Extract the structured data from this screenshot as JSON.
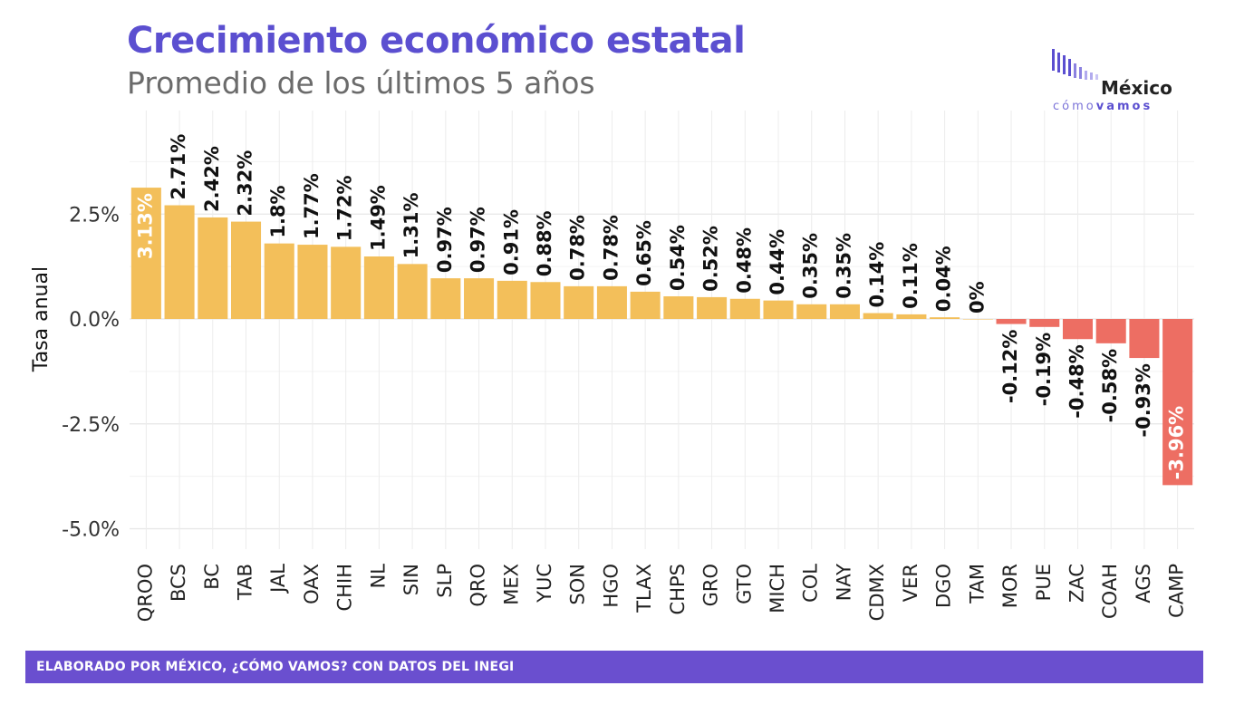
{
  "header": {
    "title": "Crecimiento económico estatal",
    "subtitle": "Promedio de los últimos 5 años"
  },
  "logo": {
    "line1": "México",
    "line2a": "cómo",
    "line2b": "vamos"
  },
  "footer": {
    "text": "ELABORADO POR MÉXICO, ¿CÓMO VAMOS? CON DATOS DEL INEGI"
  },
  "colors": {
    "positive": "#f3bf5a",
    "negative": "#ed6e63",
    "title": "#5b4fd0",
    "footer": "#6a4fcf"
  },
  "chart_data": {
    "type": "bar",
    "title": "Crecimiento económico estatal",
    "subtitle": "Promedio de los últimos 5 años",
    "xlabel": "",
    "ylabel": "Tasa anual",
    "ylim": [
      -5.5,
      5.0
    ],
    "yticks": [
      -5.0,
      -2.5,
      0.0,
      2.5
    ],
    "ytick_labels": [
      "-5.0%",
      "-2.5%",
      "0.0%",
      "2.5%"
    ],
    "grid": true,
    "categories": [
      "QROO",
      "BCS",
      "BC",
      "TAB",
      "JAL",
      "OAX",
      "CHIH",
      "NL",
      "SIN",
      "SLP",
      "QRO",
      "MEX",
      "YUC",
      "SON",
      "HGO",
      "TLAX",
      "CHPS",
      "GRO",
      "GTO",
      "MICH",
      "COL",
      "NAY",
      "CDMX",
      "VER",
      "DGO",
      "TAM",
      "MOR",
      "PUE",
      "ZAC",
      "COAH",
      "AGS",
      "CAMP"
    ],
    "values": [
      3.13,
      2.71,
      2.42,
      2.32,
      1.8,
      1.77,
      1.72,
      1.49,
      1.31,
      0.97,
      0.97,
      0.91,
      0.88,
      0.78,
      0.78,
      0.65,
      0.54,
      0.52,
      0.48,
      0.44,
      0.35,
      0.35,
      0.14,
      0.11,
      0.04,
      0,
      -0.12,
      -0.19,
      -0.48,
      -0.58,
      -0.93,
      -3.96
    ],
    "labels": [
      "3.13%",
      "2.71%",
      "2.42%",
      "2.32%",
      "1.8%",
      "1.77%",
      "1.72%",
      "1.49%",
      "1.31%",
      "0.97%",
      "0.97%",
      "0.91%",
      "0.88%",
      "0.78%",
      "0.78%",
      "0.65%",
      "0.54%",
      "0.52%",
      "0.48%",
      "0.44%",
      "0.35%",
      "0.35%",
      "0.14%",
      "0.11%",
      "0.04%",
      "0%",
      "-0.12%",
      "-0.19%",
      "-0.48%",
      "-0.58%",
      "-0.93%",
      "-3.96%"
    ]
  }
}
